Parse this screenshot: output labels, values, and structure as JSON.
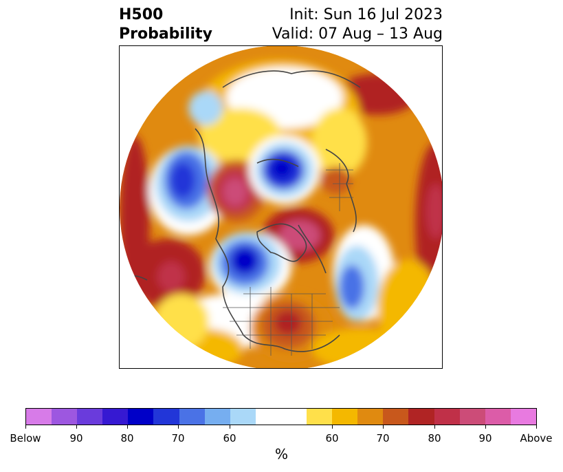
{
  "title": {
    "left_line1": "H500",
    "left_line2": "Probability",
    "right_line1": "Init: Sun 16 Jul 2023",
    "right_line2": "Valid: 07 Aug – 13 Aug"
  },
  "colorbar": {
    "colors": [
      "#d77be8",
      "#9d57e0",
      "#6a3bdc",
      "#3619d2",
      "#0000c8",
      "#2236d8",
      "#4a72e6",
      "#76aef0",
      "#aad8f8",
      "#ffffff",
      "#ffe04a",
      "#f4b800",
      "#e08a10",
      "#c8581c",
      "#b02424",
      "#c03048",
      "#cc4c78",
      "#dc5ca8",
      "#e87ae0"
    ],
    "tick_labels": [
      "Below",
      "90",
      "80",
      "70",
      "60",
      "60",
      "70",
      "80",
      "90",
      "Above"
    ],
    "unit": "%"
  },
  "map": {
    "below_color": "#0000c8",
    "above_color": "#b02424"
  }
}
